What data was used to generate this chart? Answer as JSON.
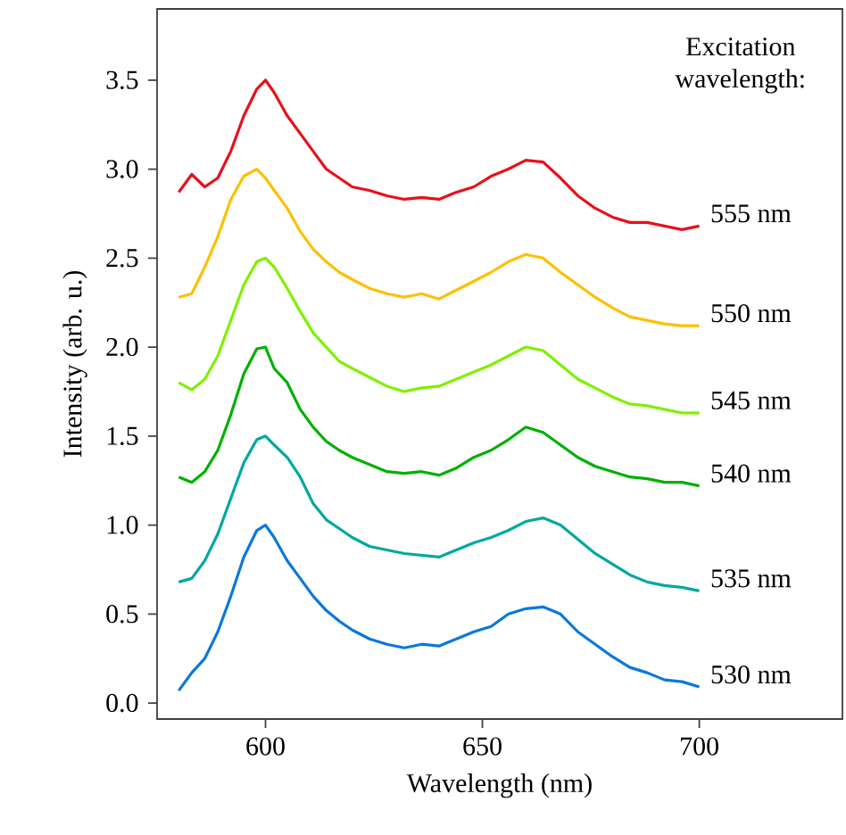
{
  "chart_data": {
    "type": "line",
    "xlabel": "Wavelength (nm)",
    "ylabel": "Intensity (arb. u.)",
    "legend_title": "Excitation wavelength:",
    "x": [
      580,
      583,
      586,
      589,
      592,
      595,
      598,
      600,
      602,
      605,
      608,
      611,
      614,
      617,
      620,
      624,
      628,
      632,
      636,
      640,
      644,
      648,
      652,
      656,
      660,
      664,
      668,
      672,
      676,
      680,
      684,
      688,
      692,
      696,
      700
    ],
    "xlim": [
      575,
      733
    ],
    "ylim": [
      -0.09,
      3.9
    ],
    "xticks": [
      600,
      650,
      700
    ],
    "yticks": [
      {
        "value": 0,
        "label": "0.0"
      },
      {
        "value": 0.5,
        "label": "0.5"
      },
      {
        "value": 1,
        "label": "1.0"
      },
      {
        "value": 1.5,
        "label": "1.5"
      },
      {
        "value": 2,
        "label": "2.0"
      },
      {
        "value": 2.5,
        "label": "2.5"
      },
      {
        "value": 3,
        "label": "3.0"
      },
      {
        "value": 3.5,
        "label": "3.5"
      }
    ],
    "grid": false,
    "marker": "none",
    "line_style": "solid",
    "series": [
      {
        "name": "530 nm",
        "color": "#0a78dc",
        "values": [
          0.07,
          0.17,
          0.25,
          0.4,
          0.6,
          0.82,
          0.97,
          1.0,
          0.93,
          0.8,
          0.7,
          0.6,
          0.52,
          0.46,
          0.41,
          0.36,
          0.33,
          0.31,
          0.33,
          0.32,
          0.36,
          0.4,
          0.43,
          0.5,
          0.53,
          0.54,
          0.5,
          0.4,
          0.33,
          0.26,
          0.2,
          0.17,
          0.13,
          0.12,
          0.09
        ]
      },
      {
        "name": "535 nm",
        "color": "#00a8a0",
        "values": [
          0.68,
          0.7,
          0.8,
          0.95,
          1.15,
          1.35,
          1.48,
          1.5,
          1.45,
          1.38,
          1.27,
          1.12,
          1.03,
          0.98,
          0.93,
          0.88,
          0.86,
          0.84,
          0.83,
          0.82,
          0.86,
          0.9,
          0.93,
          0.97,
          1.02,
          1.04,
          1.0,
          0.92,
          0.84,
          0.78,
          0.72,
          0.68,
          0.66,
          0.65,
          0.63
        ]
      },
      {
        "name": "540 nm",
        "color": "#00b000",
        "values": [
          1.27,
          1.24,
          1.3,
          1.42,
          1.62,
          1.85,
          1.99,
          2.0,
          1.88,
          1.8,
          1.65,
          1.55,
          1.47,
          1.42,
          1.38,
          1.34,
          1.3,
          1.29,
          1.3,
          1.28,
          1.32,
          1.38,
          1.42,
          1.48,
          1.55,
          1.52,
          1.45,
          1.38,
          1.33,
          1.3,
          1.27,
          1.26,
          1.24,
          1.24,
          1.22
        ]
      },
      {
        "name": "545 nm",
        "color": "#80f000",
        "values": [
          1.8,
          1.76,
          1.82,
          1.95,
          2.15,
          2.35,
          2.48,
          2.5,
          2.45,
          2.33,
          2.2,
          2.08,
          2.0,
          1.92,
          1.88,
          1.83,
          1.78,
          1.75,
          1.77,
          1.78,
          1.82,
          1.86,
          1.9,
          1.95,
          2.0,
          1.98,
          1.9,
          1.82,
          1.77,
          1.72,
          1.68,
          1.67,
          1.65,
          1.63,
          1.63
        ]
      },
      {
        "name": "550 nm",
        "color": "#ffc000",
        "values": [
          2.28,
          2.3,
          2.45,
          2.62,
          2.83,
          2.96,
          3.0,
          2.95,
          2.88,
          2.78,
          2.65,
          2.55,
          2.48,
          2.42,
          2.38,
          2.33,
          2.3,
          2.28,
          2.3,
          2.27,
          2.32,
          2.37,
          2.42,
          2.48,
          2.52,
          2.5,
          2.42,
          2.35,
          2.28,
          2.22,
          2.17,
          2.15,
          2.13,
          2.12,
          2.12
        ]
      },
      {
        "name": "555 nm",
        "color": "#e8101a",
        "values": [
          2.87,
          2.97,
          2.9,
          2.95,
          3.1,
          3.3,
          3.45,
          3.5,
          3.43,
          3.3,
          3.2,
          3.1,
          3.0,
          2.95,
          2.9,
          2.88,
          2.85,
          2.83,
          2.84,
          2.83,
          2.87,
          2.9,
          2.96,
          3.0,
          3.05,
          3.04,
          2.95,
          2.85,
          2.78,
          2.73,
          2.7,
          2.7,
          2.68,
          2.66,
          2.68
        ]
      }
    ]
  }
}
